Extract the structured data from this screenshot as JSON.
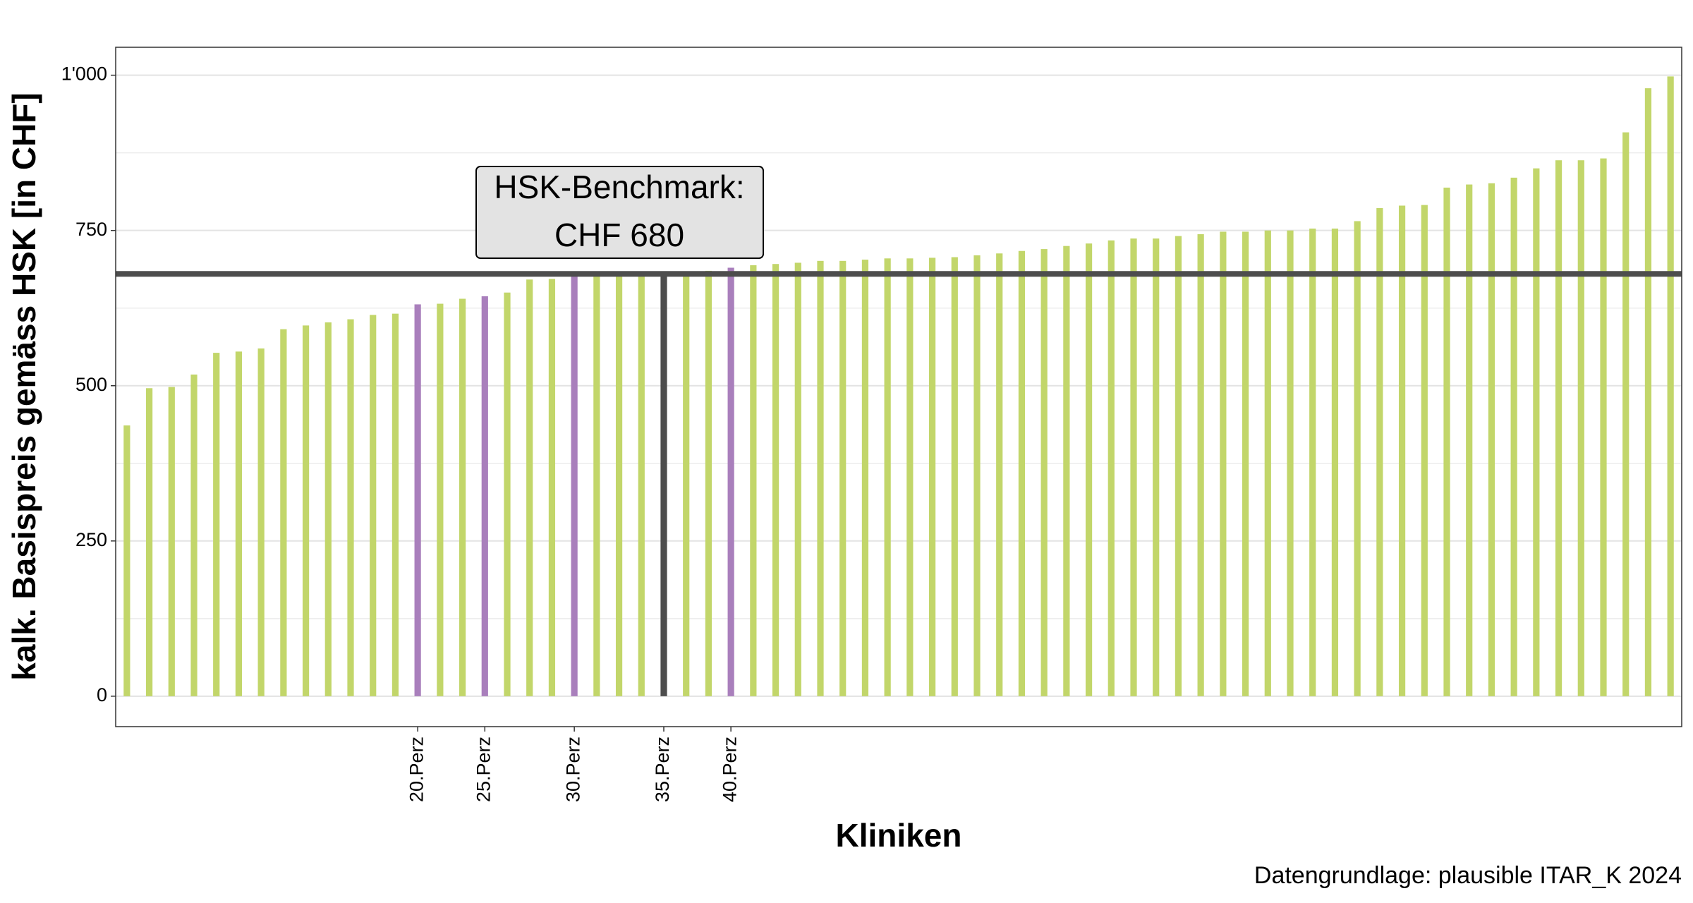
{
  "chart_data": {
    "type": "bar",
    "y_label": "kalk. Basispreis gemäss HSK [in CHF]",
    "x_label": "Kliniken",
    "caption": "Datengrundlage: plausible ITAR_K 2024",
    "annotation": [
      "HSK-Benchmark:",
      "CHF 680"
    ],
    "benchmark": 680,
    "benchmark_color": "#4d4d4d",
    "categories": [
      null,
      null,
      null,
      null,
      null,
      null,
      null,
      null,
      null,
      null,
      null,
      null,
      null,
      "20.Perz",
      null,
      null,
      "25.Perz",
      null,
      null,
      null,
      "30.Perz",
      null,
      null,
      null,
      "35.Perz",
      null,
      null,
      "40.Perz",
      null,
      null,
      null,
      null,
      null,
      null,
      null,
      null,
      null,
      null,
      null,
      null,
      null,
      null,
      null,
      null,
      null,
      null,
      null,
      null,
      null,
      null,
      null,
      null,
      null,
      null,
      null,
      null,
      null,
      null,
      null,
      null,
      null,
      null,
      null,
      null,
      null,
      null,
      null,
      null,
      null,
      null
    ],
    "values": [
      436,
      496,
      498,
      518,
      553,
      555,
      560,
      591,
      597,
      602,
      607,
      614,
      616,
      631,
      632,
      640,
      644,
      650,
      671,
      672,
      678,
      678,
      678,
      678,
      680,
      679,
      685,
      690,
      694,
      696,
      698,
      701,
      701,
      703,
      705,
      705,
      706,
      707,
      710,
      713,
      717,
      720,
      725,
      729,
      734,
      737,
      737,
      741,
      744,
      748,
      748,
      750,
      750,
      753,
      753,
      765,
      786,
      790,
      791,
      819,
      824,
      826,
      835,
      850,
      863,
      863,
      866,
      908,
      979,
      998
    ],
    "colors": [
      "#c2d66a",
      "#c2d66a",
      "#c2d66a",
      "#c2d66a",
      "#c2d66a",
      "#c2d66a",
      "#c2d66a",
      "#c2d66a",
      "#c2d66a",
      "#c2d66a",
      "#c2d66a",
      "#c2d66a",
      "#c2d66a",
      "#a97fbc",
      "#c2d66a",
      "#c2d66a",
      "#a97fbc",
      "#c2d66a",
      "#c2d66a",
      "#c2d66a",
      "#a97fbc",
      "#c2d66a",
      "#c2d66a",
      "#c2d66a",
      "#4d4d4d",
      "#c2d66a",
      "#c2d66a",
      "#a97fbc",
      "#c2d66a",
      "#c2d66a",
      "#c2d66a",
      "#c2d66a",
      "#c2d66a",
      "#c2d66a",
      "#c2d66a",
      "#c2d66a",
      "#c2d66a",
      "#c2d66a",
      "#c2d66a",
      "#c2d66a",
      "#c2d66a",
      "#c2d66a",
      "#c2d66a",
      "#c2d66a",
      "#c2d66a",
      "#c2d66a",
      "#c2d66a",
      "#c2d66a",
      "#c2d66a",
      "#c2d66a",
      "#c2d66a",
      "#c2d66a",
      "#c2d66a",
      "#c2d66a",
      "#c2d66a",
      "#c2d66a",
      "#c2d66a",
      "#c2d66a",
      "#c2d66a",
      "#c2d66a",
      "#c2d66a",
      "#c2d66a",
      "#c2d66a",
      "#c2d66a",
      "#c2d66a",
      "#c2d66a",
      "#c2d66a",
      "#c2d66a",
      "#c2d66a",
      "#c2d66a"
    ],
    "ylim": [
      -49,
      1045
    ],
    "yticks": [
      0,
      250,
      500,
      750,
      {
        "value": 1000,
        "label": "1'000"
      }
    ],
    "grid": true,
    "minor_grid": true
  }
}
